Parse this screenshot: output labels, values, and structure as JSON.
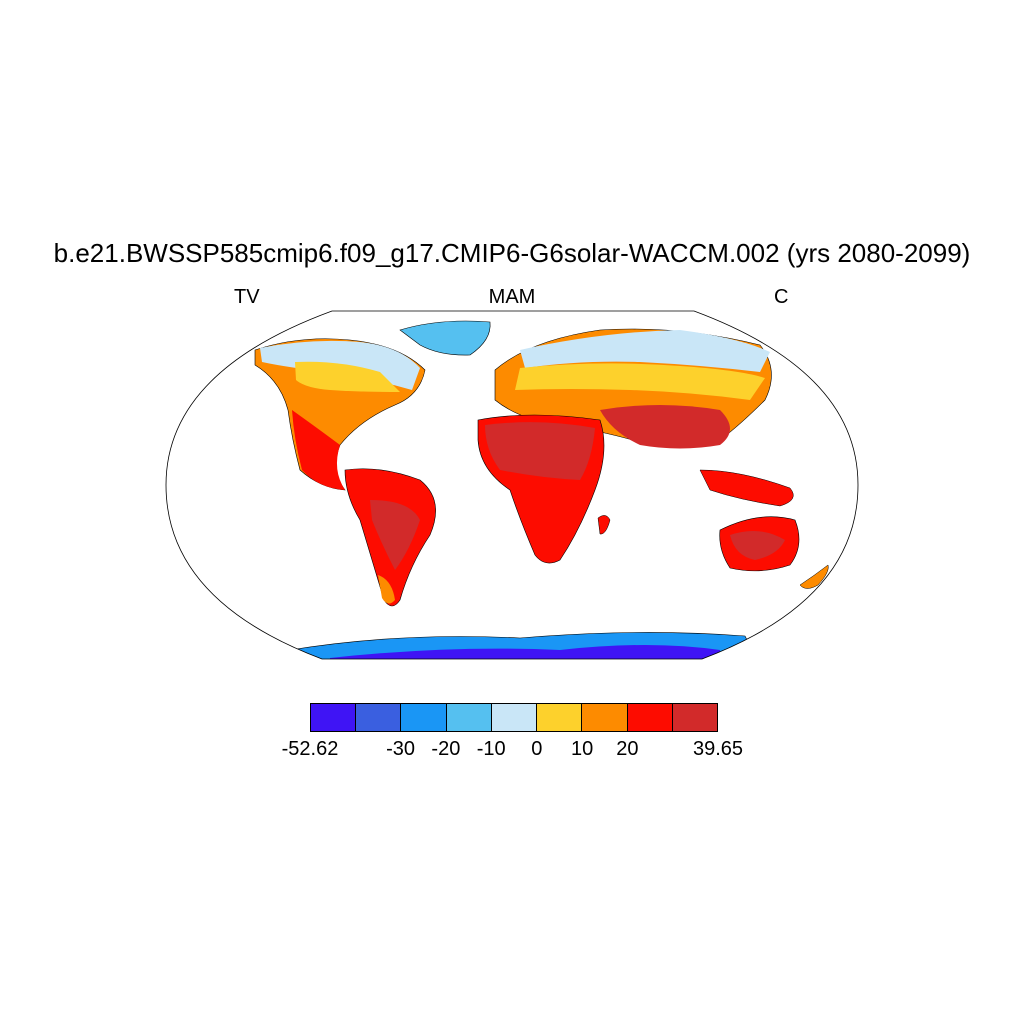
{
  "title": "b.e21.BWSSP585cmip6.f09_g17.CMIP6-G6solar-WACCM.002 (yrs 2080-2099)",
  "left_label": "TV",
  "center_label": "MAM",
  "right_label": "C",
  "colorbar": {
    "colors": [
      "#3f14f5",
      "#3a5fe0",
      "#1a96f5",
      "#55c0f0",
      "#c9e6f7",
      "#fdd12c",
      "#fd8b00",
      "#fd0c00",
      "#d22a2a"
    ],
    "labels": [
      {
        "text": "-52.62",
        "pos": 0.0
      },
      {
        "text": "-30",
        "pos": 0.222
      },
      {
        "text": "-20",
        "pos": 0.333
      },
      {
        "text": "-10",
        "pos": 0.444
      },
      {
        "text": "0",
        "pos": 0.556
      },
      {
        "text": "10",
        "pos": 0.667
      },
      {
        "text": "20",
        "pos": 0.778
      },
      {
        "text": "39.65",
        "pos": 1.0
      }
    ]
  }
}
